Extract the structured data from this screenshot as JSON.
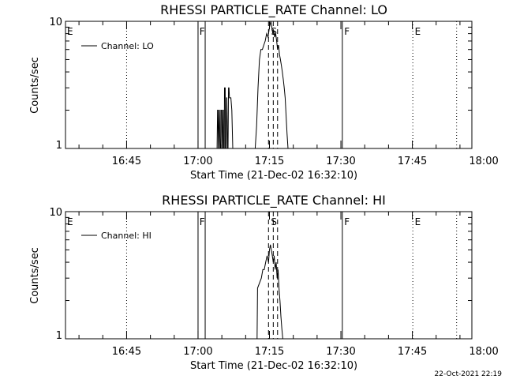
{
  "timestamp": "22-Oct-2021 22:19",
  "colors": {
    "background": "#ffffff",
    "foreground": "#000000"
  },
  "chart_data": [
    {
      "type": "line",
      "title": "RHESSI PARTICLE_RATE Channel: LO",
      "xlabel": "Start Time (21-Dec-02 16:32:10)",
      "ylabel": "Counts/sec",
      "y_scale": "log",
      "ylim": [
        1,
        10
      ],
      "y_ticks": [
        {
          "value": 1,
          "label": "1"
        },
        {
          "value": 10,
          "label": "10"
        }
      ],
      "xlim_min": [
        32.1667,
        117.5
      ],
      "x_ticks": [
        {
          "t": 45,
          "label": "16:45"
        },
        {
          "t": 60,
          "label": "17:00"
        },
        {
          "t": 75,
          "label": "17:15"
        },
        {
          "t": 90,
          "label": "17:30"
        },
        {
          "t": 105,
          "label": "17:45"
        },
        {
          "t": 120,
          "label": "18:00"
        }
      ],
      "legend": {
        "position": "top-left",
        "label": "Channel: LO"
      },
      "vlines": [
        {
          "t": 45.0,
          "style": "dotted"
        },
        {
          "t": 60.0,
          "style": "solid"
        },
        {
          "t": 61.5,
          "style": "solid"
        },
        {
          "t": 74.8,
          "style": "dashed"
        },
        {
          "t": 75.8,
          "style": "dashed"
        },
        {
          "t": 76.7,
          "style": "dashed"
        },
        {
          "t": 90.3,
          "style": "solid"
        },
        {
          "t": 105.1,
          "style": "dotted"
        },
        {
          "t": 114.3,
          "style": "dotted"
        }
      ],
      "markers": [
        {
          "t": 32.5,
          "label": "E"
        },
        {
          "t": 60.3,
          "label": "F"
        },
        {
          "t": 75.3,
          "label": "S"
        },
        {
          "t": 90.7,
          "label": "F"
        },
        {
          "t": 105.5,
          "label": "E"
        }
      ],
      "series": [
        {
          "x_min": [
            64.0,
            64.1,
            64.2,
            64.25,
            64.3,
            64.45,
            64.5,
            64.6,
            64.75,
            64.8,
            64.95,
            65.0,
            65.1,
            65.2,
            65.3,
            65.35,
            65.5,
            65.55,
            65.7,
            65.75,
            65.9,
            66.0,
            66.05,
            66.2,
            66.3,
            66.4,
            66.5,
            66.6,
            66.7,
            66.9,
            67.1,
            67.3,
            67.5,
            67.7,
            67.9,
            68.1,
            68.3,
            68.5,
            68.7,
            68.9,
            69.1,
            69.3,
            69.5,
            69.7,
            69.9,
            70.2,
            70.5,
            70.8,
            71.1,
            71.4,
            71.7,
            72.0,
            72.3,
            72.6,
            72.9,
            73.2,
            73.5,
            73.8,
            74.1,
            74.4,
            74.7,
            75.0,
            75.3,
            75.5,
            75.7,
            75.9,
            76.1,
            76.3,
            76.5,
            76.7,
            76.9,
            77.1,
            77.3,
            77.5,
            77.7,
            77.9,
            78.1,
            78.3,
            78.5,
            78.7,
            78.9,
            79.1
          ],
          "y": [
            1.0,
            2.0,
            2.0,
            1.0,
            1.0,
            2.0,
            2.0,
            1.0,
            1.0,
            2.0,
            2.0,
            1.0,
            1.0,
            2.0,
            2.0,
            1.0,
            1.0,
            3.0,
            3.0,
            1.0,
            1.0,
            2.5,
            2.5,
            1.0,
            1.0,
            3.0,
            3.0,
            2.5,
            2.5,
            2.5,
            2.0,
            1.0,
            1.0,
            1.0,
            1.0,
            1.0,
            1.0,
            1.0,
            1.0,
            1.0,
            1.0,
            1.0,
            1.0,
            1.0,
            1.0,
            1.0,
            1.0,
            1.0,
            1.0,
            1.0,
            1.0,
            1.0,
            1.5,
            3.0,
            5.0,
            6.0,
            6.0,
            6.5,
            7.0,
            8.0,
            7.5,
            9.0,
            10.0,
            9.0,
            8.0,
            8.5,
            7.5,
            8.0,
            7.0,
            6.0,
            6.5,
            5.5,
            5.0,
            4.5,
            4.0,
            3.5,
            3.0,
            2.5,
            1.8,
            1.3,
            1.0,
            1.0
          ]
        }
      ]
    },
    {
      "type": "line",
      "title": "RHESSI PARTICLE_RATE Channel: HI",
      "xlabel": "Start Time (21-Dec-02 16:32:10)",
      "ylabel": "Counts/sec",
      "y_scale": "log",
      "ylim": [
        1,
        10
      ],
      "y_ticks": [
        {
          "value": 1,
          "label": "1"
        },
        {
          "value": 10,
          "label": "10"
        }
      ],
      "xlim_min": [
        32.1667,
        117.5
      ],
      "x_ticks": [
        {
          "t": 45,
          "label": "16:45"
        },
        {
          "t": 60,
          "label": "17:00"
        },
        {
          "t": 75,
          "label": "17:15"
        },
        {
          "t": 90,
          "label": "17:30"
        },
        {
          "t": 105,
          "label": "17:45"
        },
        {
          "t": 120,
          "label": "18:00"
        }
      ],
      "legend": {
        "position": "top-left",
        "label": "Channel: HI"
      },
      "vlines": [
        {
          "t": 45.0,
          "style": "dotted"
        },
        {
          "t": 60.0,
          "style": "solid"
        },
        {
          "t": 61.5,
          "style": "solid"
        },
        {
          "t": 74.8,
          "style": "dashed"
        },
        {
          "t": 75.8,
          "style": "dashed"
        },
        {
          "t": 76.7,
          "style": "dashed"
        },
        {
          "t": 90.3,
          "style": "solid"
        },
        {
          "t": 105.1,
          "style": "dotted"
        },
        {
          "t": 114.3,
          "style": "dotted"
        }
      ],
      "markers": [
        {
          "t": 32.5,
          "label": "E"
        },
        {
          "t": 60.3,
          "label": "F"
        },
        {
          "t": 75.3,
          "label": "S"
        },
        {
          "t": 90.7,
          "label": "F"
        },
        {
          "t": 105.5,
          "label": "E"
        }
      ],
      "series": [
        {
          "x_min": [
            70.0,
            72.4,
            72.5,
            73.3,
            73.6,
            73.9,
            74.2,
            74.5,
            74.8,
            75.0,
            75.2,
            75.4,
            75.6,
            75.8,
            76.0,
            76.2,
            76.4,
            76.6,
            76.8,
            77.0,
            77.2,
            77.4,
            77.6,
            77.8,
            78.0,
            80.0
          ],
          "y": [
            1.0,
            1.0,
            2.5,
            3.0,
            3.5,
            3.5,
            4.0,
            4.5,
            4.0,
            5.0,
            5.5,
            5.0,
            4.5,
            4.0,
            4.5,
            3.5,
            4.0,
            3.0,
            3.5,
            2.5,
            2.0,
            1.5,
            1.2,
            1.0,
            1.0,
            1.0
          ]
        }
      ]
    }
  ]
}
